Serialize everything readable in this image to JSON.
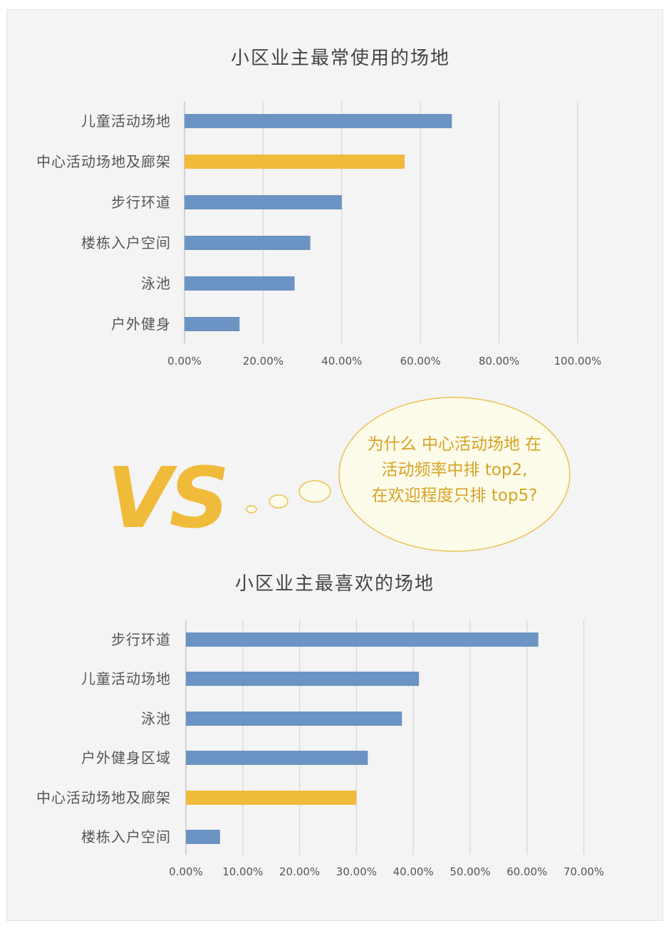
{
  "chart_data": [
    {
      "type": "bar",
      "orientation": "horizontal",
      "title": "小区业主最常使用的场地",
      "categories": [
        "儿童活动场地",
        "中心活动场地及廊架",
        "步行环道",
        "楼栋入户空间",
        "泳池",
        "户外健身"
      ],
      "values": [
        0.68,
        0.56,
        0.4,
        0.32,
        0.28,
        0.14
      ],
      "highlight_index": 1,
      "xlim": [
        0,
        1.0
      ],
      "xticks": [
        "0.00%",
        "20.00%",
        "40.00%",
        "60.00%",
        "80.00%",
        "100.00%"
      ],
      "grid": true
    },
    {
      "type": "bar",
      "orientation": "horizontal",
      "title": "小区业主最喜欢的场地",
      "categories": [
        "步行环道",
        "儿童活动场地",
        "泳池",
        "户外健身区域",
        "中心活动场地及廊架",
        "楼栋入户空间"
      ],
      "values": [
        0.62,
        0.41,
        0.38,
        0.32,
        0.3,
        0.06
      ],
      "highlight_index": 4,
      "xlim": [
        0,
        0.7
      ],
      "xticks": [
        "0.00%",
        "10.00%",
        "20.00%",
        "30.00%",
        "40.00%",
        "50.00%",
        "60.00%",
        "70.00%"
      ],
      "grid": true
    }
  ],
  "colors": {
    "bar": "#6b93c3",
    "highlight": "#f0bb3b",
    "grid": "#d6d6d6",
    "axis": "#bbbbbb",
    "text": "#555555",
    "vs": "#f0bb3b",
    "bubble_text": "#d7a327"
  },
  "vs_label": "VS",
  "bubble": {
    "lines": [
      "为什么 中心活动场地 在",
      "活动频率中排 top2,",
      "在欢迎程度只排 top5?"
    ]
  }
}
